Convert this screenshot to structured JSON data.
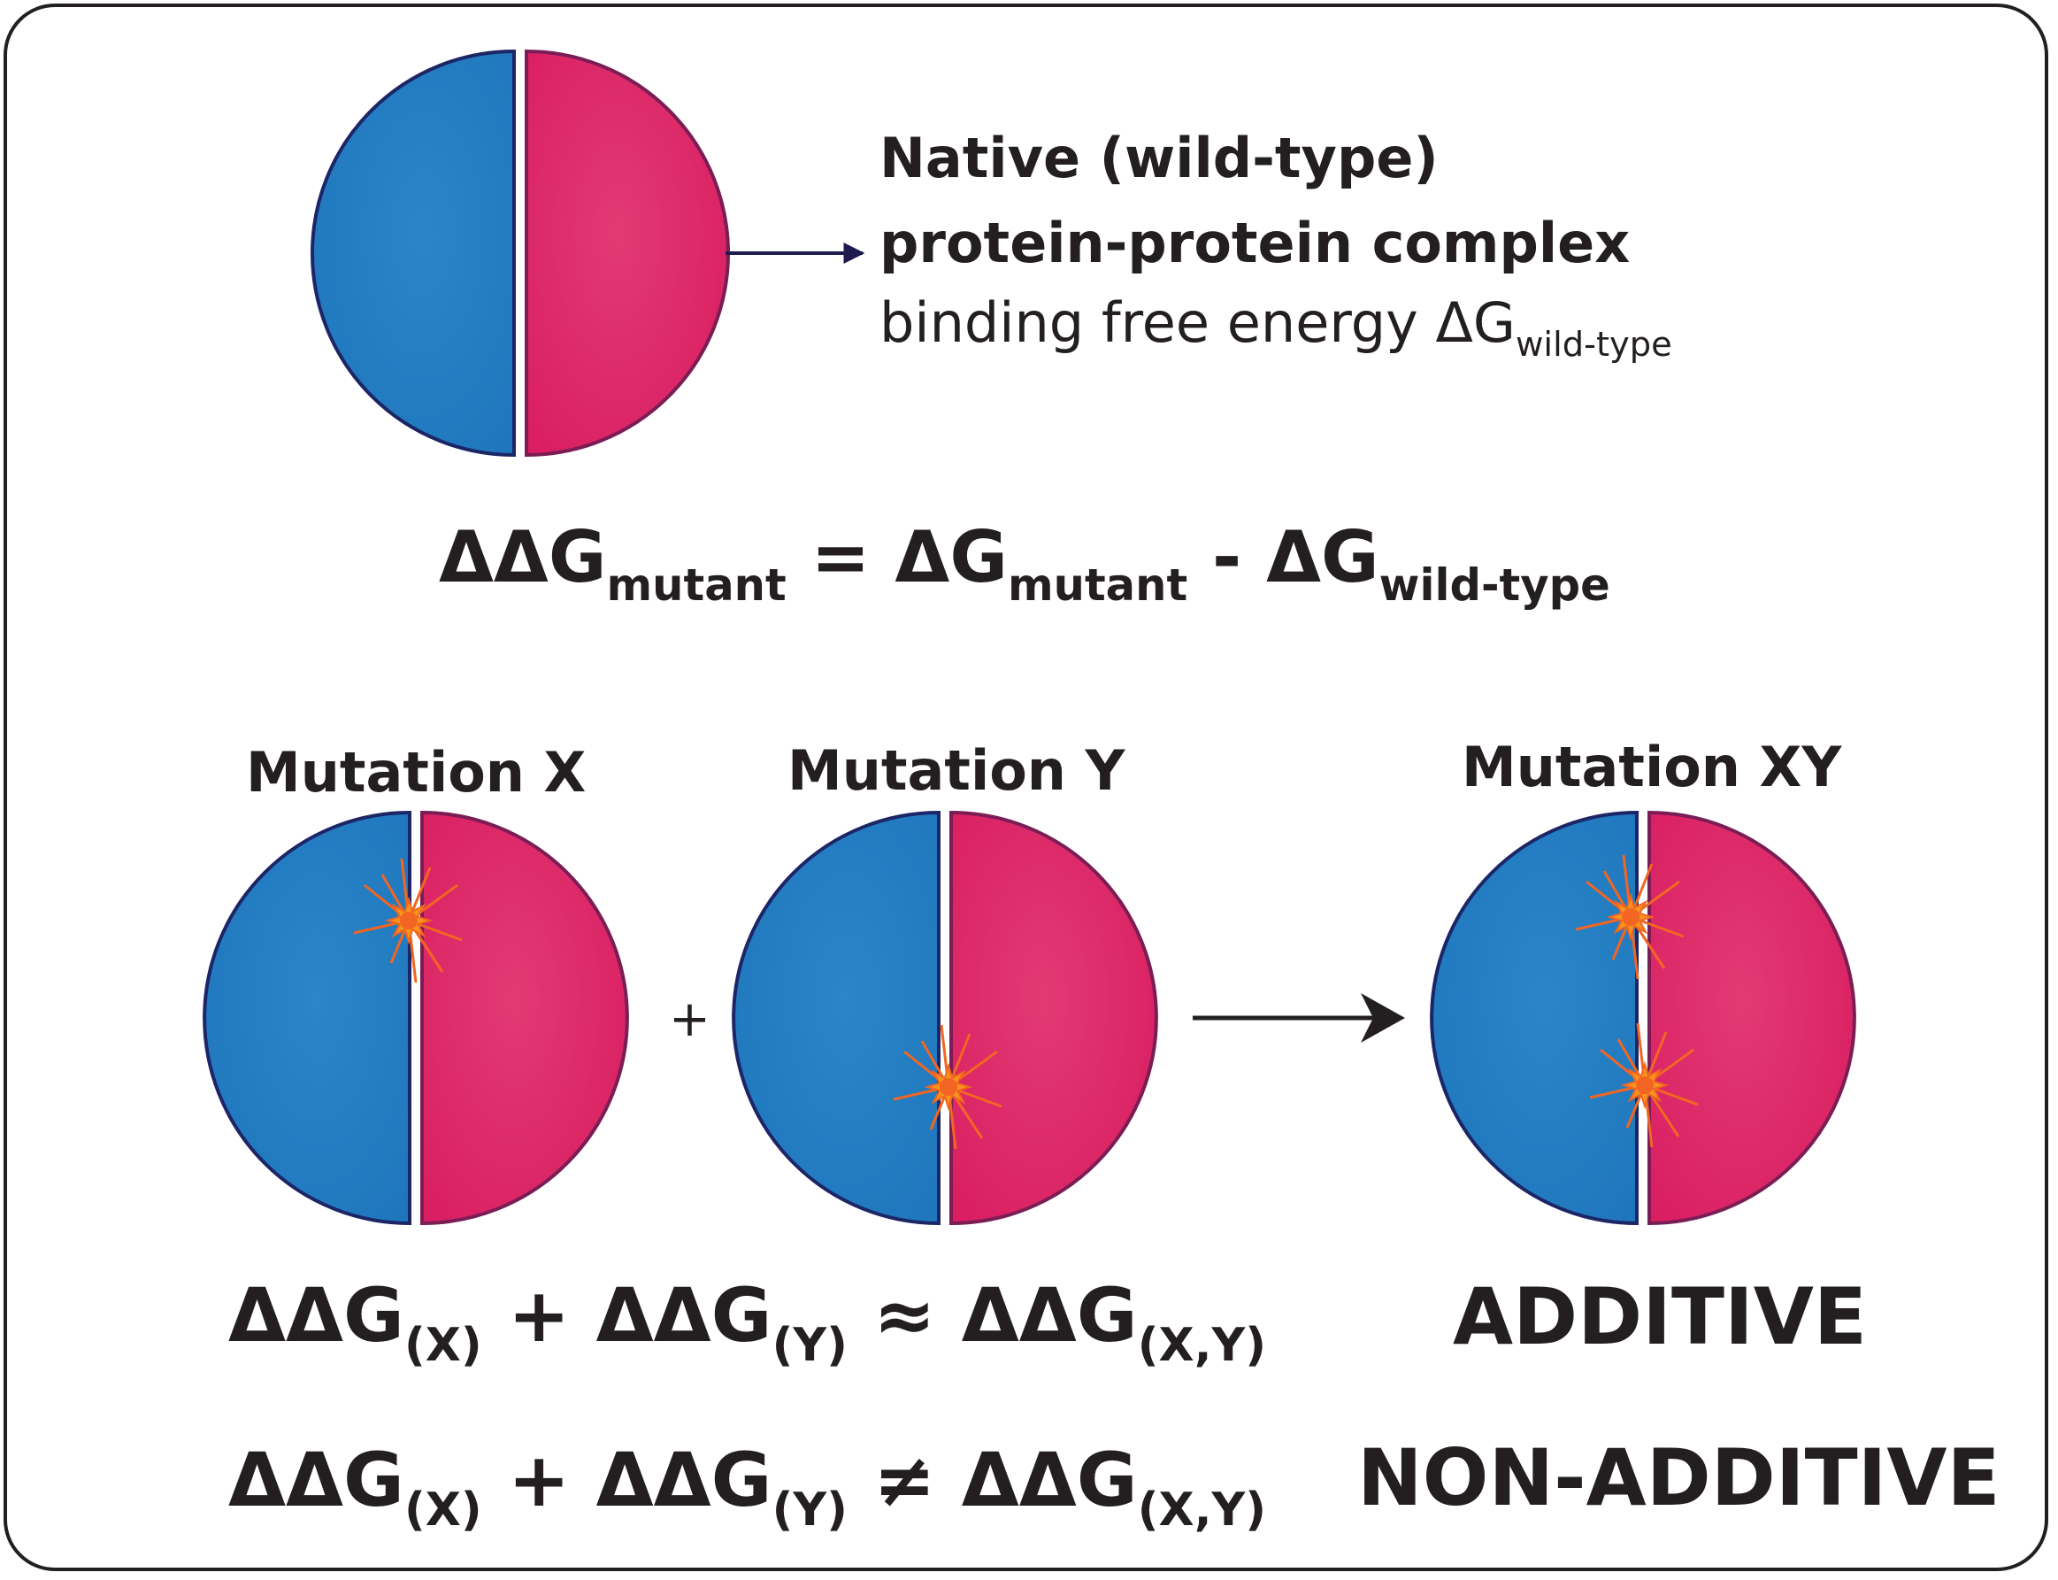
{
  "colors": {
    "left_half": "#1e74bb",
    "left_half_light": "#2a86c8",
    "right_half": "#d81b5f",
    "right_half_light": "#e23a74",
    "outline_left": "#1c2566",
    "outline_right": "#7a1d55",
    "arrow": "#231f20",
    "arrow_top": "#1c1a4f",
    "burst": "#f7941d",
    "burst_core": "#f26522",
    "text": "#231f20"
  },
  "native": {
    "line1": "Native (wild-type)",
    "line2": "protein-protein complex",
    "line3_prefix": "binding free energy ΔG",
    "line3_sub": "wild-type"
  },
  "ddg_equation": {
    "lhs": "ΔΔG",
    "lhs_sub": "mutant",
    "equals": " = ",
    "term1": "ΔG",
    "term1_sub": "mutant",
    "minus": " - ",
    "term2": "ΔG",
    "term2_sub": "wild-type"
  },
  "mutations": {
    "x_label": "Mutation X",
    "y_label": "Mutation Y",
    "xy_label": "Mutation XY",
    "plus": "+"
  },
  "additive": {
    "t1": "ΔΔG",
    "s1": "(X)",
    "op1": " + ",
    "t2": "ΔΔG",
    "s2": "(Y)",
    "rel": " ≈ ",
    "t3": "ΔΔG",
    "s3": "(X,Y)",
    "result": "ADDITIVE"
  },
  "non_additive": {
    "t1": "ΔΔG",
    "s1": "(X)",
    "op1": " + ",
    "t2": "ΔΔG",
    "s2": "(Y)",
    "rel": " ≠ ",
    "t3": "ΔΔG",
    "s3": "(X,Y)",
    "result": "NON-ADDITIVE"
  }
}
